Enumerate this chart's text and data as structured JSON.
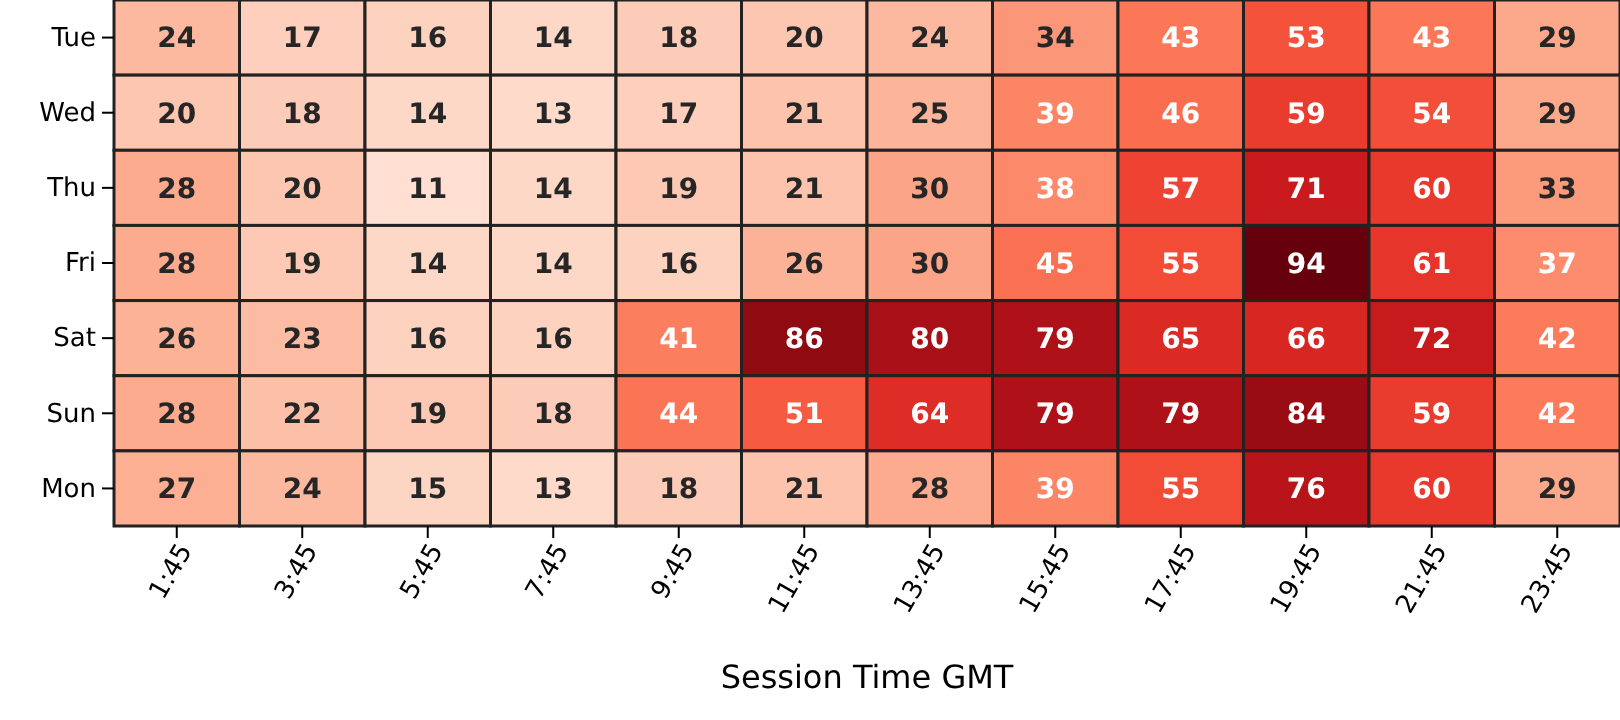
{
  "chart_data": {
    "type": "heatmap",
    "xlabel": "Session Time GMT",
    "categories": [
      "1:45",
      "3:45",
      "5:45",
      "7:45",
      "9:45",
      "11:45",
      "13:45",
      "15:45",
      "17:45",
      "19:45",
      "21:45",
      "23:45"
    ],
    "y_categories": [
      "Tue",
      "Wed",
      "Thu",
      "Fri",
      "Sat",
      "Sun",
      "Mon"
    ],
    "data_labels": true,
    "cells": [
      [
        24,
        17,
        16,
        14,
        18,
        20,
        24,
        34,
        43,
        53,
        43,
        29
      ],
      [
        20,
        18,
        14,
        13,
        17,
        21,
        25,
        39,
        46,
        59,
        54,
        29
      ],
      [
        28,
        20,
        11,
        14,
        19,
        21,
        30,
        38,
        57,
        71,
        60,
        33
      ],
      [
        28,
        19,
        14,
        14,
        16,
        26,
        30,
        45,
        55,
        94,
        61,
        37
      ],
      [
        26,
        23,
        16,
        16,
        41,
        86,
        80,
        79,
        65,
        66,
        72,
        42
      ],
      [
        28,
        22,
        19,
        18,
        44,
        51,
        64,
        79,
        79,
        84,
        59,
        42
      ],
      [
        27,
        24,
        15,
        13,
        18,
        21,
        28,
        39,
        55,
        76,
        60,
        29
      ]
    ]
  }
}
